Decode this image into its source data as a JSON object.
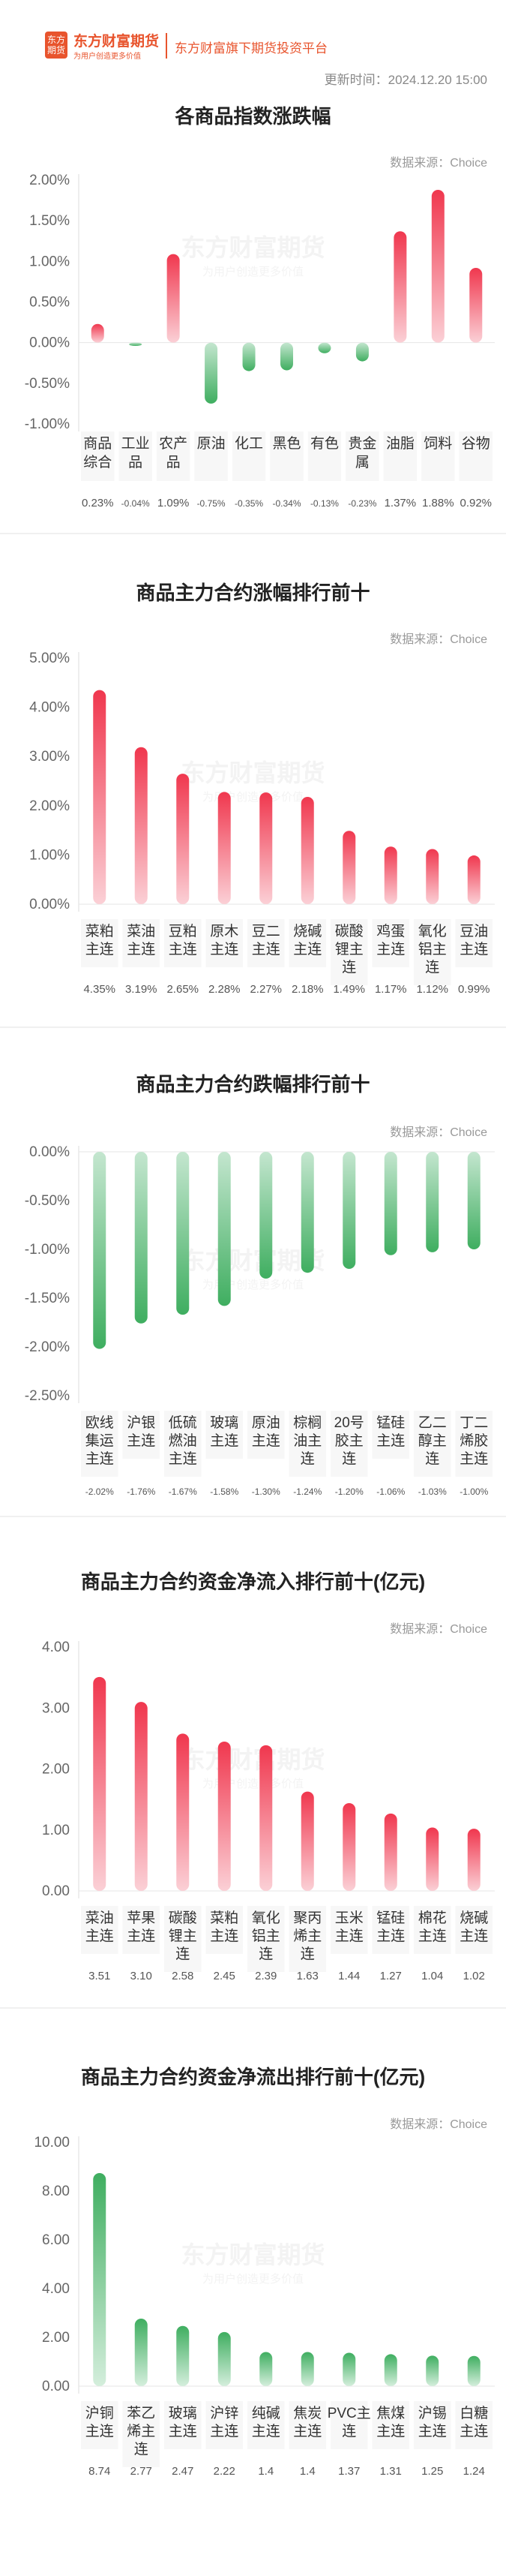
{
  "header": {
    "logo_text": "东方财富期货",
    "logo_sub": "为用户创造更多价值",
    "platform": "东方财富旗下期货投资平台",
    "update_time": "更新时间：2024.12.20 15:00"
  },
  "watermark": {
    "main": "东方财富期货",
    "sub": "为用户创造更多价值"
  },
  "chart_data": [
    {
      "type": "bar",
      "title": "各商品指数涨跌幅",
      "source": "数据来源：Choice",
      "categories": [
        "商品综合",
        "工业品",
        "农产品",
        "原油",
        "化工",
        "黑色",
        "有色",
        "贵金属",
        "油脂",
        "饲料",
        "谷物"
      ],
      "values": [
        0.23,
        -0.04,
        1.09,
        -0.75,
        -0.35,
        -0.34,
        -0.13,
        -0.23,
        1.37,
        1.88,
        0.92
      ],
      "value_labels": [
        "0.23%",
        "-0.04%",
        "1.09%",
        "-0.75%",
        "-0.35%",
        "-0.34%",
        "-0.13%",
        "-0.23%",
        "1.37%",
        "1.88%",
        "0.92%"
      ],
      "ylim": [
        -1,
        2
      ],
      "yticks": [
        2,
        1.5,
        1,
        0.5,
        0,
        -0.5,
        -1
      ],
      "ytick_labels": [
        "2.00%",
        "1.50%",
        "1.00%",
        "0.50%",
        "0.00%",
        "-0.50%",
        "-1.00%"
      ],
      "grid": false
    },
    {
      "type": "bar",
      "title": "商品主力合约涨幅排行前十",
      "source": "数据来源：Choice",
      "categories": [
        "菜粕主连",
        "菜油主连",
        "豆粕主连",
        "原木主连",
        "豆二主连",
        "烧碱主连",
        "碳酸锂主连",
        "鸡蛋主连",
        "氧化铝主连",
        "豆油主连"
      ],
      "values": [
        4.35,
        3.19,
        2.65,
        2.28,
        2.27,
        2.18,
        1.49,
        1.17,
        1.12,
        0.99
      ],
      "value_labels": [
        "4.35%",
        "3.19%",
        "2.65%",
        "2.28%",
        "2.27%",
        "2.18%",
        "1.49%",
        "1.17%",
        "1.12%",
        "0.99%"
      ],
      "ylim": [
        0,
        5
      ],
      "yticks": [
        5,
        4,
        3,
        2,
        1,
        0
      ],
      "ytick_labels": [
        "5.00%",
        "4.00%",
        "3.00%",
        "2.00%",
        "1.00%",
        "0.00%"
      ],
      "grid": false
    },
    {
      "type": "bar",
      "title": "商品主力合约跌幅排行前十",
      "source": "数据来源：Choice",
      "categories": [
        "欧线集运主连",
        "沪银主连",
        "低硫燃油主连",
        "玻璃主连",
        "原油主连",
        "棕榈油主连",
        "20号胶主连",
        "锰硅主连",
        "乙二醇主连",
        "丁二烯胶主连"
      ],
      "values": [
        -2.02,
        -1.76,
        -1.67,
        -1.58,
        -1.3,
        -1.24,
        -1.2,
        -1.06,
        -1.03,
        -1.0
      ],
      "value_labels": [
        "-2.02%",
        "-1.76%",
        "-1.67%",
        "-1.58%",
        "-1.30%",
        "-1.24%",
        "-1.20%",
        "-1.06%",
        "-1.03%",
        "-1.00%"
      ],
      "ylim": [
        -2.5,
        0
      ],
      "yticks": [
        0,
        -0.5,
        -1,
        -1.5,
        -2,
        -2.5
      ],
      "ytick_labels": [
        "0.00%",
        "-0.50%",
        "-1.00%",
        "-1.50%",
        "-2.00%",
        "-2.50%"
      ],
      "grid": false
    },
    {
      "type": "bar",
      "title": "商品主力合约资金净流入排行前十(亿元)",
      "source": "数据来源：Choice",
      "categories": [
        "菜油主连",
        "苹果主连",
        "碳酸锂主连",
        "菜粕主连",
        "氧化铝主连",
        "聚丙烯主连",
        "玉米主连",
        "锰硅主连",
        "棉花主连",
        "烧碱主连"
      ],
      "values": [
        3.51,
        3.1,
        2.58,
        2.45,
        2.39,
        1.63,
        1.44,
        1.27,
        1.04,
        1.02
      ],
      "value_labels": [
        "3.51",
        "3.10",
        "2.58",
        "2.45",
        "2.39",
        "1.63",
        "1.44",
        "1.27",
        "1.04",
        "1.02"
      ],
      "ylim": [
        0,
        4
      ],
      "yticks": [
        4,
        3,
        2,
        1,
        0
      ],
      "ytick_labels": [
        "4.00",
        "3.00",
        "2.00",
        "1.00",
        "0.00"
      ],
      "grid": false
    },
    {
      "type": "bar",
      "title": "商品主力合约资金净流出排行前十(亿元)",
      "source": "数据来源：Choice",
      "categories": [
        "沪铜主连",
        "苯乙烯主连",
        "玻璃主连",
        "沪锌主连",
        "纯碱主连",
        "焦炭主连",
        "PVC主连",
        "焦煤主连",
        "沪锡主连",
        "白糖主连"
      ],
      "values": [
        8.74,
        2.77,
        2.47,
        2.22,
        1.4,
        1.4,
        1.37,
        1.31,
        1.25,
        1.24
      ],
      "value_labels": [
        "8.74",
        "2.77",
        "2.47",
        "2.22",
        "1.4",
        "1.4",
        "1.37",
        "1.31",
        "1.25",
        "1.24"
      ],
      "ylim": [
        0,
        10
      ],
      "yticks": [
        10,
        8,
        6,
        4,
        2,
        0
      ],
      "ytick_labels": [
        "10.00",
        "8.00",
        "6.00",
        "4.00",
        "2.00",
        "0.00"
      ],
      "grid": false
    }
  ]
}
